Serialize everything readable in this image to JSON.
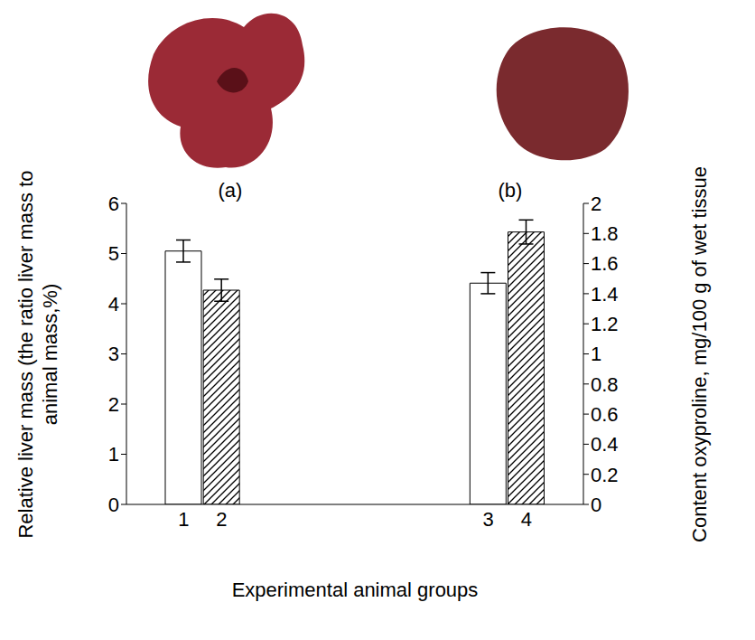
{
  "chart_data": {
    "type": "bar",
    "categories": [
      null,
      "1",
      "2",
      null,
      null,
      null,
      null,
      null,
      null,
      "3",
      "4",
      null
    ],
    "x_label": "Experimental animal groups",
    "y_label": "Relative liver mass (the ratio liver mass to animal mass,%)",
    "y2_label": "Content oxyproline, mg/100 g of wet tissue",
    "annotations": [
      "(a)",
      "(b)"
    ],
    "ylim": [
      0,
      6
    ],
    "yticks": [
      0,
      1,
      2,
      3,
      4,
      5,
      6
    ],
    "y2lim": [
      0,
      2
    ],
    "y2ticks": [
      0,
      0.2,
      0.4,
      0.6,
      0.8,
      1,
      1.2,
      1.4,
      1.6,
      1.8,
      2
    ],
    "grid": false,
    "series": [
      {
        "axis": "y",
        "values": [
          null,
          5.05,
          4.27,
          null,
          null,
          null,
          null,
          null,
          null,
          null,
          null,
          null
        ],
        "errors": [
          null,
          0.22,
          0.22,
          null,
          null,
          null,
          null,
          null,
          null,
          null,
          null,
          null
        ],
        "colors": [
          null,
          "#ffffff",
          "#000000",
          null,
          null,
          null,
          null,
          null,
          null,
          null,
          null,
          null
        ]
      },
      {
        "axis": "y2",
        "values": [
          null,
          null,
          null,
          null,
          null,
          null,
          null,
          null,
          null,
          1.47,
          1.81,
          null
        ],
        "errors": [
          null,
          null,
          null,
          null,
          null,
          null,
          null,
          null,
          null,
          0.07,
          0.08,
          null
        ],
        "colors": [
          null,
          null,
          null,
          null,
          null,
          null,
          null,
          null,
          null,
          "#ffffff",
          "#000000",
          null
        ]
      }
    ]
  }
}
